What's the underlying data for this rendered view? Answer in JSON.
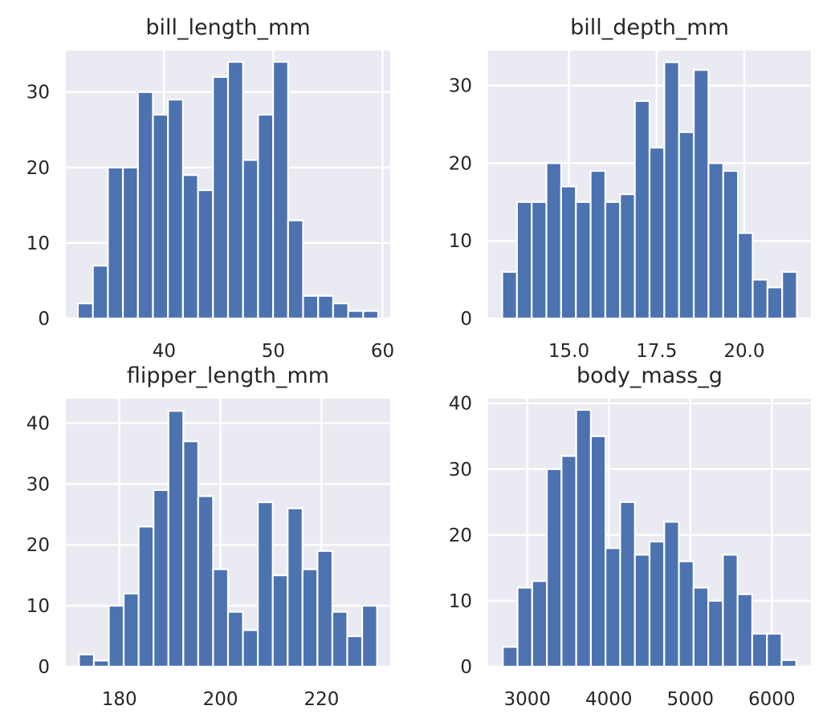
{
  "chart_data": [
    {
      "type": "bar",
      "title": "bill_length_mm",
      "xlim": [
        31.0,
        60.7
      ],
      "ylim": [
        0,
        35.5
      ],
      "xticks": [
        "40",
        "50",
        "60"
      ],
      "yticks": [
        "0",
        "10",
        "20",
        "30"
      ],
      "bin_start": 32.1,
      "bin_width": 1.375,
      "values": [
        2,
        7,
        20,
        20,
        30,
        27,
        29,
        19,
        17,
        32,
        34,
        21,
        27,
        34,
        13,
        3,
        3,
        2,
        1,
        1
      ],
      "grid": true
    },
    {
      "type": "bar",
      "title": "bill_depth_mm",
      "xlim": [
        12.7,
        21.9
      ],
      "ylim": [
        0,
        34.5
      ],
      "xticks": [
        "15.0",
        "17.5",
        "20.0"
      ],
      "yticks": [
        "0",
        "10",
        "20",
        "30"
      ],
      "bin_start": 13.1,
      "bin_width": 0.42,
      "values": [
        6,
        15,
        15,
        20,
        17,
        15,
        19,
        15,
        16,
        28,
        22,
        33,
        24,
        32,
        20,
        19,
        11,
        5,
        4,
        6
      ],
      "grid": true
    },
    {
      "type": "bar",
      "title": "flipper_length_mm",
      "xlim": [
        169.4,
        233.6
      ],
      "ylim": [
        0,
        44
      ],
      "xticks": [
        "180",
        "200",
        "220"
      ],
      "yticks": [
        "0",
        "10",
        "20",
        "30",
        "40"
      ],
      "bin_start": 172,
      "bin_width": 2.95,
      "values": [
        2,
        1,
        10,
        12,
        23,
        29,
        42,
        37,
        28,
        16,
        9,
        6,
        27,
        15,
        26,
        16,
        19,
        9,
        5,
        10
      ],
      "grid": true
    },
    {
      "type": "bar",
      "title": "body_mass_g",
      "xlim": [
        2520,
        6480
      ],
      "ylim": [
        0,
        40.7
      ],
      "xticks": [
        "3000",
        "4000",
        "5000",
        "6000"
      ],
      "yticks": [
        "0",
        "10",
        "20",
        "30",
        "40"
      ],
      "bin_start": 2700,
      "bin_width": 180,
      "values": [
        3,
        12,
        13,
        30,
        32,
        39,
        35,
        18,
        25,
        17,
        19,
        22,
        16,
        12,
        10,
        17,
        11,
        5,
        5,
        1
      ],
      "grid": true
    }
  ],
  "colors": {
    "bar": "#4c72b0",
    "axes_bg": "#eaeaf2",
    "grid": "#ffffff",
    "text": "#262626"
  }
}
